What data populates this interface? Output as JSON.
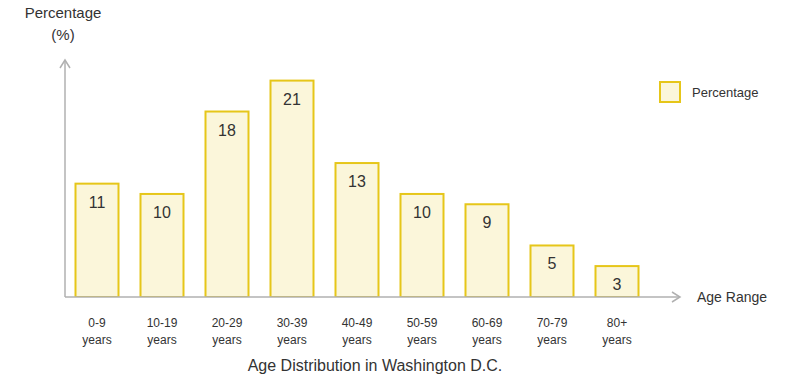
{
  "chart_data": {
    "type": "bar",
    "title": "Age Distribution in Washington D.C.",
    "x_label": "Age Range",
    "y_label": "Percentage (%)",
    "categories": [
      "0-9 years",
      "10-19 years",
      "20-29 years",
      "30-39 years",
      "40-49 years",
      "50-59 years",
      "60-69 years",
      "70-79 years",
      "80+ years"
    ],
    "series": [
      {
        "name": "Percentage",
        "color": "#e6c619",
        "values": [
          11,
          10,
          18,
          21,
          13,
          10,
          9,
          5,
          3
        ]
      }
    ],
    "ylim": [
      0,
      23
    ],
    "legend": "top-right",
    "data_labels": true,
    "tick_labels": "x",
    "grid": false
  }
}
